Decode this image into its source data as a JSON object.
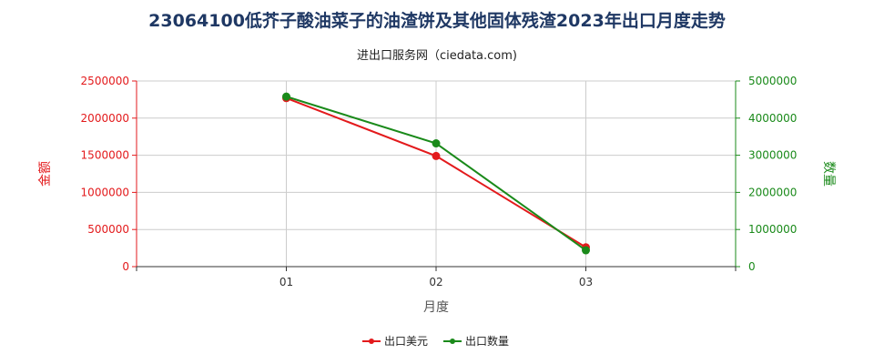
{
  "title": "23064100低芥子酸油菜子的油渣饼及其他固体残渣2023年出口月度走势",
  "subtitle": "进出口服务网（ciedata.com)",
  "colors": {
    "left": "#e31a1c",
    "right": "#1a8a1a",
    "title": "#1f3864",
    "grid": "#cccccc"
  },
  "chart_data": {
    "type": "line",
    "categories": [
      "01",
      "02",
      "03"
    ],
    "xlabel": "月度",
    "ylabel_left": "金额",
    "ylabel_right": "数量",
    "ylim_left": [
      0,
      2500000
    ],
    "ylim_right": [
      0,
      5000000
    ],
    "yticks_left": [
      0,
      500000,
      1000000,
      1500000,
      2000000,
      2500000
    ],
    "yticks_right": [
      0,
      1000000,
      2000000,
      3000000,
      4000000,
      5000000
    ],
    "grid": true,
    "legend_position": "bottom",
    "series": [
      {
        "name": "出口美元",
        "axis": "left",
        "color": "#e31a1c",
        "values": [
          2270000,
          1490000,
          260000
        ]
      },
      {
        "name": "出口数量",
        "axis": "right",
        "color": "#1a8a1a",
        "values": [
          4580000,
          3320000,
          440000
        ]
      }
    ]
  }
}
